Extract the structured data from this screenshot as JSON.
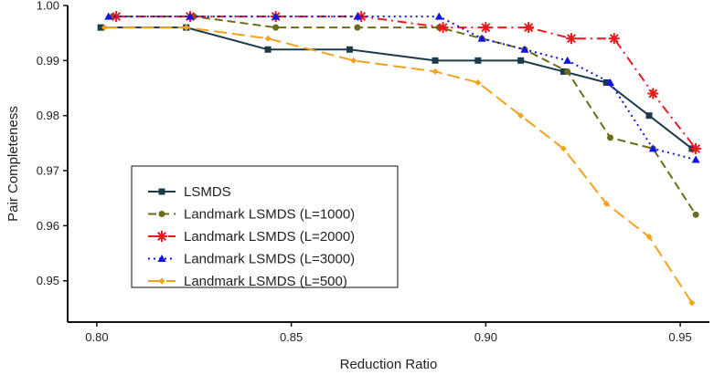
{
  "chart_data": {
    "type": "line",
    "title": "",
    "xlabel": "Reduction Ratio",
    "ylabel": "Pair Completeness",
    "xlim": [
      0.7925,
      0.9575
    ],
    "ylim": [
      0.9425,
      1.0
    ],
    "xticks": [
      "0.80",
      "0.85",
      "0.90",
      "0.95"
    ],
    "yticks": [
      "0.95",
      "0.96",
      "0.97",
      "0.98",
      "0.99",
      "1.00"
    ],
    "grid": false,
    "legend_position": "lower-left",
    "series": [
      {
        "name": "LSMDS",
        "color": "#1b3a4b",
        "marker": "square",
        "dash": "solid",
        "x": [
          0.801,
          0.823,
          0.844,
          0.865,
          0.887,
          0.898,
          0.909,
          0.92,
          0.931,
          0.942,
          0.953
        ],
        "y": [
          0.996,
          0.996,
          0.992,
          0.992,
          0.99,
          0.99,
          0.99,
          0.988,
          0.986,
          0.98,
          0.974
        ]
      },
      {
        "name": "Landmark LSMDS (L=1000)",
        "color": "#6b6b1a",
        "marker": "circle",
        "dash": "dashed",
        "x": [
          0.804,
          0.825,
          0.846,
          0.867,
          0.888,
          0.899,
          0.91,
          0.921,
          0.932,
          0.943,
          0.954
        ],
        "y": [
          0.998,
          0.998,
          0.996,
          0.996,
          0.996,
          0.994,
          0.992,
          0.988,
          0.976,
          0.974,
          0.962
        ]
      },
      {
        "name": "Landmark LSMDS (L=2000)",
        "color": "#e8191c",
        "marker": "asterisk",
        "dash": "dashdot",
        "x": [
          0.805,
          0.824,
          0.846,
          0.868,
          0.889,
          0.9,
          0.911,
          0.922,
          0.933,
          0.943,
          0.954
        ],
        "y": [
          0.998,
          0.998,
          0.998,
          0.998,
          0.996,
          0.996,
          0.996,
          0.994,
          0.994,
          0.984,
          0.974
        ]
      },
      {
        "name": "Landmark LSMDS (L=3000)",
        "color": "#1414e0",
        "marker": "triangle",
        "dash": "dotted",
        "x": [
          0.803,
          0.824,
          0.846,
          0.867,
          0.888,
          0.899,
          0.91,
          0.921,
          0.932,
          0.943,
          0.954
        ],
        "y": [
          0.998,
          0.998,
          0.998,
          0.998,
          0.998,
          0.994,
          0.992,
          0.99,
          0.986,
          0.974,
          0.972
        ]
      },
      {
        "name": "Landmark LSMDS (L=500)",
        "color": "#f5a11c",
        "marker": "diamond",
        "dash": "longdash",
        "x": [
          0.802,
          0.823,
          0.844,
          0.866,
          0.887,
          0.898,
          0.909,
          0.92,
          0.931,
          0.942,
          0.953
        ],
        "y": [
          0.996,
          0.996,
          0.994,
          0.99,
          0.988,
          0.986,
          0.98,
          0.974,
          0.964,
          0.958,
          0.946
        ]
      }
    ]
  }
}
